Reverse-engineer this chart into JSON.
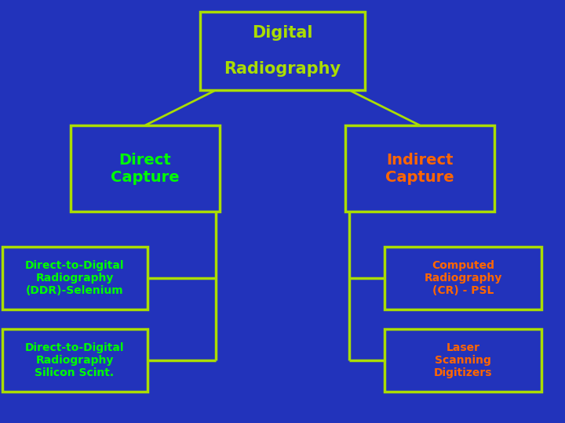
{
  "background_color": "#2233BB",
  "box_edge_color": "#AADD00",
  "box_face_color": "#2233BB",
  "line_color": "#AADD00",
  "title_text": "Digital\n\nRadiography",
  "title_color": "#AADD00",
  "direct_text": "Direct\nCapture",
  "direct_color": "#00FF00",
  "indirect_text": "Indirect\nCapture",
  "indirect_color": "#FF6600",
  "leaf_left_1": "Direct-to-Digital\nRadiography\n(DDR)-Selenium",
  "leaf_left_1_color": "#00FF00",
  "leaf_left_2": "Direct-to-Digital\nRadiography\nSilicon Scint.",
  "leaf_left_2_color": "#00FF00",
  "leaf_right_1": "Computed\nRadiography\n(CR) - PSL",
  "leaf_right_1_color": "#FF6600",
  "leaf_right_2": "Laser\nScanning\nDigitizers",
  "leaf_right_2_color": "#FF6600",
  "figsize": [
    7.2,
    5.4
  ],
  "dpi": 100
}
